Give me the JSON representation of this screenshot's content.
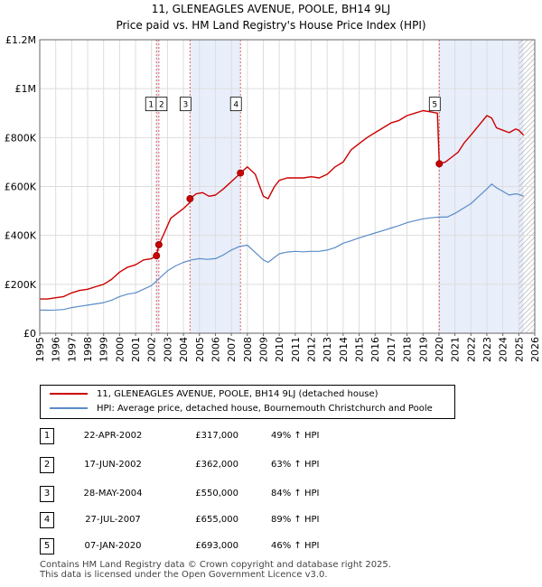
{
  "title_line1": "11, GLENEAGLES AVENUE, POOLE, BH14 9LJ",
  "title_line2": "Price paid vs. HM Land Registry's House Price Index (HPI)",
  "colors": {
    "property": "#cc0000",
    "hpi": "#5b8cc8",
    "shade": "#e8eefa",
    "grid": "#dddddd",
    "marker_line": "#e06060"
  },
  "legend": {
    "property_label": "11, GLENEAGLES AVENUE, POOLE, BH14 9LJ (detached house)",
    "hpi_label": "HPI: Average price, detached house, Bournemouth Christchurch and Poole"
  },
  "transactions": [
    {
      "id": "1",
      "date": "22-APR-2002",
      "price": "£317,000",
      "hpi": "49% ↑ HPI"
    },
    {
      "id": "2",
      "date": "17-JUN-2002",
      "price": "£362,000",
      "hpi": "63% ↑ HPI"
    },
    {
      "id": "3",
      "date": "28-MAY-2004",
      "price": "£550,000",
      "hpi": "84% ↑ HPI"
    },
    {
      "id": "4",
      "date": "27-JUL-2007",
      "price": "£655,000",
      "hpi": "89% ↑ HPI"
    },
    {
      "id": "5",
      "date": "07-JAN-2020",
      "price": "£693,000",
      "hpi": "46% ↑ HPI"
    }
  ],
  "footer": {
    "line1": "Contains HM Land Registry data © Crown copyright and database right 2025.",
    "line2": "This data is licensed under the Open Government Licence v3.0."
  },
  "chart_data": {
    "type": "line",
    "title": "11, GLENEAGLES AVENUE, POOLE, BH14 9LJ",
    "subtitle": "Price paid vs. HM Land Registry's House Price Index (HPI)",
    "xlim": [
      1995,
      2026
    ],
    "ylim": [
      0,
      1200000
    ],
    "x_ticks": [
      1995,
      1996,
      1997,
      1998,
      1999,
      2000,
      2001,
      2002,
      2003,
      2004,
      2005,
      2006,
      2007,
      2008,
      2009,
      2010,
      2011,
      2012,
      2013,
      2014,
      2015,
      2016,
      2017,
      2018,
      2019,
      2020,
      2021,
      2022,
      2023,
      2024,
      2025,
      2026
    ],
    "y_ticks": [
      {
        "value": 0,
        "label": "£0"
      },
      {
        "value": 200000,
        "label": "£200K"
      },
      {
        "value": 400000,
        "label": "£400K"
      },
      {
        "value": 600000,
        "label": "£600K"
      },
      {
        "value": 800000,
        "label": "£800K"
      },
      {
        "value": 1000000,
        "label": "£1M"
      },
      {
        "value": 1200000,
        "label": "£1.2M"
      }
    ],
    "shaded_ranges": [
      [
        2002.31,
        2002.46
      ],
      [
        2004.41,
        2007.57
      ],
      [
        2020.02,
        2025.3
      ]
    ],
    "hatched_from": 2025.0,
    "sales": [
      {
        "label": "1",
        "x": 2002.31,
        "y": 317000
      },
      {
        "label": "2",
        "x": 2002.46,
        "y": 362000
      },
      {
        "label": "3",
        "x": 2004.41,
        "y": 550000
      },
      {
        "label": "4",
        "x": 2007.57,
        "y": 655000
      },
      {
        "label": "5",
        "x": 2020.02,
        "y": 693000
      }
    ],
    "series": [
      {
        "name": "11, GLENEAGLES AVENUE, POOLE, BH14 9LJ (detached house)",
        "color": "#cc0000",
        "x": [
          1995.0,
          1995.5,
          1996.0,
          1996.5,
          1997.0,
          1997.5,
          1998.0,
          1998.5,
          1999.0,
          1999.5,
          2000.0,
          2000.5,
          2001.0,
          2001.5,
          2002.0,
          2002.31,
          2002.46,
          2002.8,
          2003.2,
          2003.6,
          2004.0,
          2004.4,
          2004.41,
          2004.8,
          2005.2,
          2005.6,
          2006.0,
          2006.5,
          2007.0,
          2007.5,
          2007.57,
          2008.0,
          2008.5,
          2009.0,
          2009.3,
          2009.7,
          2010.0,
          2010.5,
          2011.0,
          2011.5,
          2012.0,
          2012.5,
          2013.0,
          2013.5,
          2014.0,
          2014.5,
          2015.0,
          2015.5,
          2016.0,
          2016.5,
          2017.0,
          2017.5,
          2018.0,
          2018.5,
          2019.0,
          2019.5,
          2019.9,
          2020.02,
          2020.4,
          2020.8,
          2021.2,
          2021.6,
          2022.0,
          2022.5,
          2023.0,
          2023.3,
          2023.6,
          2024.0,
          2024.4,
          2024.8,
          2025.0,
          2025.3
        ],
        "y": [
          140000,
          140000,
          145000,
          150000,
          165000,
          175000,
          180000,
          190000,
          200000,
          220000,
          250000,
          270000,
          280000,
          300000,
          305000,
          317000,
          362000,
          410000,
          470000,
          490000,
          510000,
          535000,
          550000,
          570000,
          575000,
          560000,
          565000,
          590000,
          620000,
          650000,
          655000,
          680000,
          650000,
          560000,
          550000,
          600000,
          625000,
          635000,
          635000,
          635000,
          640000,
          635000,
          650000,
          680000,
          700000,
          750000,
          775000,
          800000,
          820000,
          840000,
          860000,
          870000,
          890000,
          900000,
          910000,
          905000,
          900000,
          693000,
          700000,
          720000,
          740000,
          780000,
          810000,
          850000,
          890000,
          880000,
          840000,
          830000,
          820000,
          835000,
          830000,
          810000
        ]
      },
      {
        "name": "HPI: Average price, detached house, Bournemouth Christchurch and Poole",
        "color": "#5b8cc8",
        "x": [
          1995.0,
          1995.5,
          1996.0,
          1996.5,
          1997.0,
          1997.5,
          1998.0,
          1998.5,
          1999.0,
          1999.5,
          2000.0,
          2000.5,
          2001.0,
          2001.5,
          2002.0,
          2002.5,
          2003.0,
          2003.5,
          2004.0,
          2004.5,
          2005.0,
          2005.5,
          2006.0,
          2006.5,
          2007.0,
          2007.5,
          2008.0,
          2008.5,
          2009.0,
          2009.3,
          2009.7,
          2010.0,
          2010.5,
          2011.0,
          2011.5,
          2012.0,
          2012.5,
          2013.0,
          2013.5,
          2014.0,
          2014.5,
          2015.0,
          2015.5,
          2016.0,
          2016.5,
          2017.0,
          2017.5,
          2018.0,
          2018.5,
          2019.0,
          2019.5,
          2020.0,
          2020.5,
          2021.0,
          2021.5,
          2022.0,
          2022.5,
          2023.0,
          2023.3,
          2023.6,
          2024.0,
          2024.4,
          2024.8,
          2025.0,
          2025.3
        ],
        "y": [
          95000,
          94000,
          95000,
          97000,
          105000,
          110000,
          115000,
          120000,
          125000,
          135000,
          150000,
          160000,
          165000,
          180000,
          195000,
          225000,
          255000,
          275000,
          290000,
          300000,
          305000,
          302000,
          305000,
          320000,
          340000,
          355000,
          360000,
          330000,
          300000,
          290000,
          310000,
          325000,
          332000,
          335000,
          333000,
          335000,
          335000,
          340000,
          350000,
          368000,
          378000,
          390000,
          400000,
          410000,
          420000,
          430000,
          440000,
          452000,
          460000,
          468000,
          472000,
          475000,
          475000,
          490000,
          510000,
          530000,
          560000,
          590000,
          610000,
          595000,
          580000,
          565000,
          570000,
          568000,
          560000
        ]
      }
    ]
  }
}
